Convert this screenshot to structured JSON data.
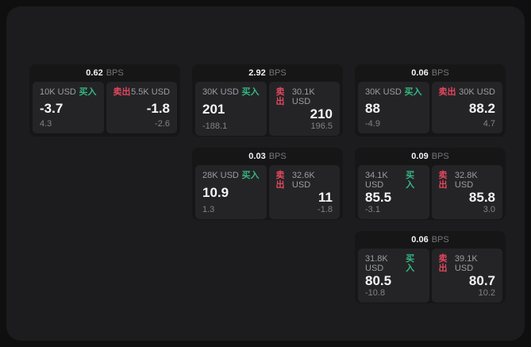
{
  "labels": {
    "bps_unit": "BPS",
    "buy": "买入",
    "sell": "卖出"
  },
  "colors": {
    "buy_accent": "#35b881",
    "sell_accent": "#e0485e",
    "panel_bg": "#1c1c1e",
    "card_bg": "#161617",
    "tile_bg": "#242427"
  },
  "cards": [
    {
      "bps": "0.62",
      "buy": {
        "size": "10K USD",
        "price": "-3.7",
        "delta": "4.3"
      },
      "sell": {
        "size": "5.5K USD",
        "price": "-1.8",
        "delta": "-2.6"
      }
    },
    {
      "bps": "2.92",
      "buy": {
        "size": "30K USD",
        "price": "201",
        "delta": "-188.1"
      },
      "sell": {
        "size": "30.1K USD",
        "price": "210",
        "delta": "196.5"
      }
    },
    {
      "bps": "0.06",
      "buy": {
        "size": "30K USD",
        "price": "88",
        "delta": "-4.9"
      },
      "sell": {
        "size": "30K USD",
        "price": "88.2",
        "delta": "4.7"
      }
    },
    {
      "bps": "0.03",
      "buy": {
        "size": "28K USD",
        "price": "10.9",
        "delta": "1.3"
      },
      "sell": {
        "size": "32.6K USD",
        "price": "11",
        "delta": "-1.8"
      }
    },
    {
      "bps": "0.09",
      "buy": {
        "size": "34.1K USD",
        "price": "85.5",
        "delta": "-3.1"
      },
      "sell": {
        "size": "32.8K USD",
        "price": "85.8",
        "delta": "3.0"
      }
    },
    {
      "bps": "0.06",
      "buy": {
        "size": "31.8K USD",
        "price": "80.5",
        "delta": "-10.8"
      },
      "sell": {
        "size": "39.1K USD",
        "price": "80.7",
        "delta": "10.2"
      }
    }
  ]
}
